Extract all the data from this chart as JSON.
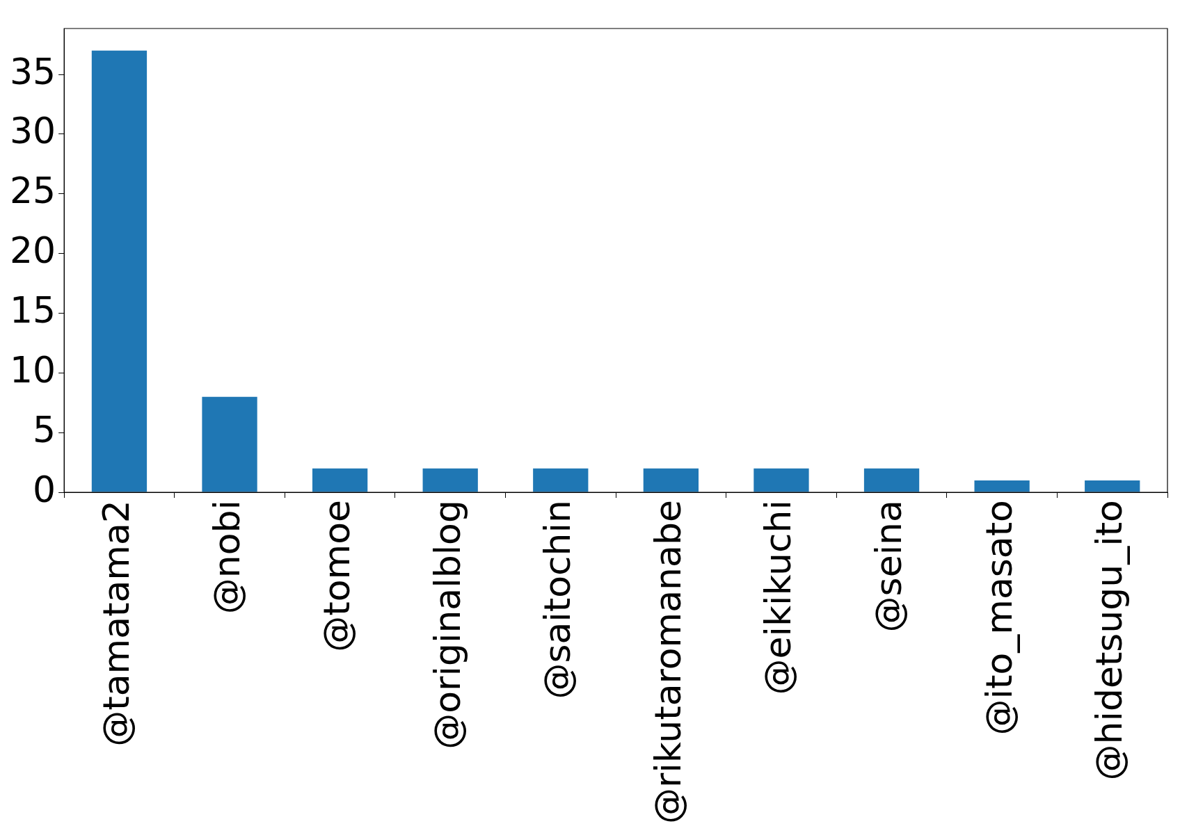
{
  "chart_data": {
    "type": "bar",
    "categories": [
      "@tamatama2",
      "@nobi",
      "@tomoe",
      "@originalblog",
      "@saitochin",
      "@rikutaromanabe",
      "@eikikuchi",
      "@seina",
      "@ito_masato",
      "@hidetsugu_ito"
    ],
    "values": [
      37,
      8,
      2,
      2,
      2,
      2,
      2,
      2,
      1,
      1
    ],
    "color": "#1f77b4",
    "ylim": [
      0,
      38.85
    ],
    "yticks": [
      0,
      5,
      10,
      15,
      20,
      25,
      30,
      35
    ],
    "grid": false,
    "legend": false
  }
}
